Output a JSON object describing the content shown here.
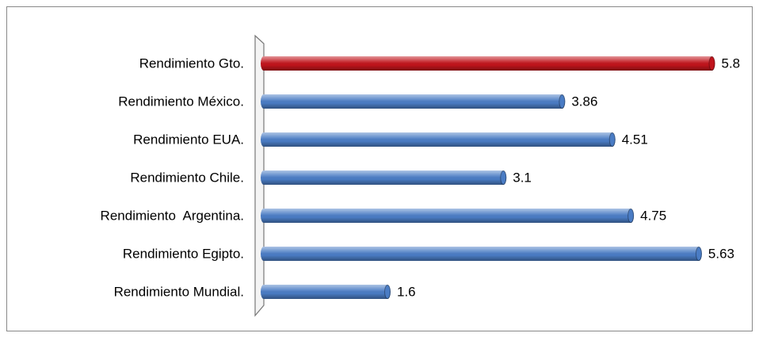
{
  "chart_data": {
    "type": "hbar",
    "categories": [
      "Rendimiento Gto.",
      "Rendimiento México.",
      "Rendimiento EUA.",
      "Rendimiento Chile.",
      "Rendimiento  Argentina.",
      "Rendimiento Egipto.",
      "Rendimiento Mundial."
    ],
    "values": [
      5.8,
      3.86,
      4.51,
      3.1,
      4.75,
      5.63,
      1.6
    ],
    "colors": [
      "#c0141c",
      "#4a7cc4",
      "#4a7cc4",
      "#4a7cc4",
      "#4a7cc4",
      "#4a7cc4",
      "#4a7cc4"
    ],
    "xlim": [
      0,
      6
    ]
  }
}
